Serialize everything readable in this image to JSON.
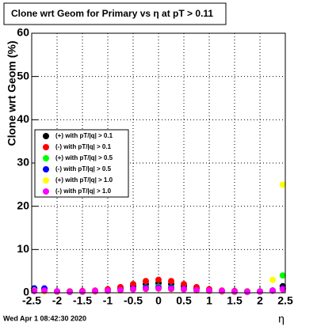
{
  "chart_data": {
    "type": "scatter",
    "title": "Clone wrt Geom for Primary vs   η at pT > 0.11",
    "x_label": "η",
    "y_label": "Clone wrt Geom (%)",
    "annotation": "Wed Apr  1 08:42:30 2020",
    "xlim": [
      -2.5,
      2.5
    ],
    "ylim": [
      0,
      60
    ],
    "xticks": [
      -2.5,
      -2,
      -1.5,
      -1,
      -0.5,
      0,
      0.5,
      1,
      1.5,
      2,
      2.5
    ],
    "yticks": [
      0,
      10,
      20,
      30,
      40,
      50,
      60
    ],
    "grid": true,
    "x": [
      -2.45,
      -2.25,
      -2.0,
      -1.75,
      -1.5,
      -1.25,
      -1.0,
      -0.75,
      -0.5,
      -0.25,
      0,
      0.25,
      0.5,
      0.75,
      1.0,
      1.25,
      1.5,
      1.75,
      2.0,
      2.25,
      2.45
    ],
    "series": [
      {
        "name": "(+) with pT/|q| > 0.1",
        "color": "#000000",
        "values": [
          1,
          0.8,
          0.3,
          0.3,
          0.3,
          0.4,
          0.6,
          1,
          1.5,
          2,
          2.2,
          2,
          1.5,
          1,
          0.6,
          0.4,
          0.3,
          0.3,
          0.3,
          0.5,
          1.5
        ]
      },
      {
        "name": "(-) with pT/|q| > 0.1",
        "color": "#ff0000",
        "values": [
          0.5,
          0.5,
          0.3,
          0.3,
          0.4,
          0.5,
          0.8,
          1.3,
          2,
          2.7,
          3,
          2.7,
          2,
          1.3,
          0.8,
          0.5,
          0.4,
          0.3,
          0.3,
          0.5,
          1
        ]
      },
      {
        "name": "(+) with pT/|q| > 0.5",
        "color": "#00ff00",
        "values": [
          0.5,
          0.3,
          0.2,
          0.2,
          0.2,
          0.3,
          0.4,
          0.6,
          0.9,
          1.2,
          1.4,
          1.2,
          0.9,
          0.6,
          0.4,
          0.3,
          0.2,
          0.2,
          0.3,
          0.5,
          4
        ]
      },
      {
        "name": "(-) with pT/|q| > 0.5",
        "color": "#0000ff",
        "values": [
          1,
          1,
          0.3,
          0.2,
          0.2,
          0.3,
          0.4,
          0.6,
          0.9,
          1.1,
          1.2,
          1.1,
          0.9,
          0.6,
          0.4,
          0.3,
          0.2,
          0.2,
          0.3,
          0.5,
          1
        ]
      },
      {
        "name": "(+) with pT/|q| > 1.0",
        "color": "#ffff00",
        "values": [
          0.5,
          0.3,
          0.2,
          0.2,
          0.2,
          0.3,
          0.4,
          0.5,
          0.7,
          0.8,
          0.9,
          0.8,
          0.7,
          0.5,
          0.4,
          0.3,
          0.2,
          0.2,
          0.3,
          3,
          25
        ]
      },
      {
        "name": "(-) with pT/|q| > 1.0",
        "color": "#ff00ff",
        "values": [
          0.4,
          0.5,
          0.3,
          0.2,
          0.3,
          0.4,
          0.5,
          0.6,
          0.8,
          0.9,
          1,
          0.9,
          0.8,
          0.6,
          0.5,
          0.4,
          0.3,
          0.2,
          0.3,
          0.5,
          0.8
        ]
      }
    ]
  }
}
